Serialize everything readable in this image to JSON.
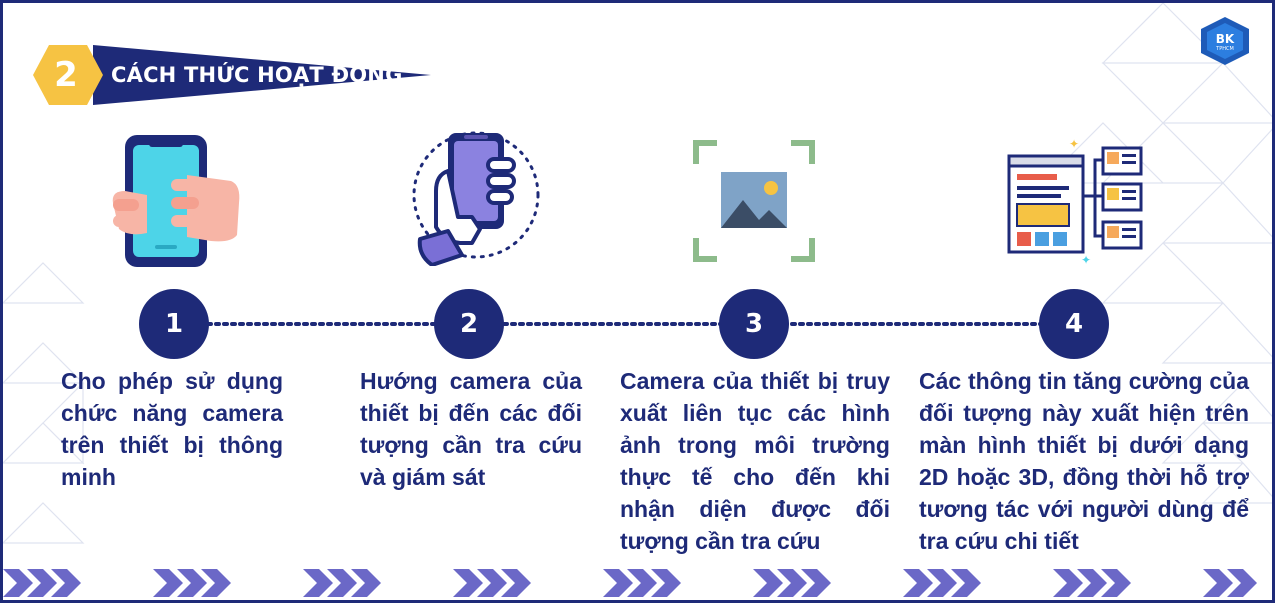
{
  "header": {
    "number": "2",
    "title": "CÁCH THỨC HOẠT ĐỘNG"
  },
  "logo": {
    "text": "BK",
    "subtext": "TPHCM"
  },
  "colors": {
    "navy": "#1e2a78",
    "yellow": "#f6c343",
    "cyan": "#4dd4e8",
    "green": "#8dbb8b",
    "purple": "#7a6fd6",
    "chevron": "#6b68c7"
  },
  "steps": [
    {
      "number": "1",
      "icon": "smartphone-hand-icon",
      "text": "Cho phép sử dụng chức năng camera trên thiết bị thông minh"
    },
    {
      "number": "2",
      "icon": "hand-holding-phone-icon",
      "text": "Hướng camera của thiết bị đến các đối tượng cần tra cứu và giám sát"
    },
    {
      "number": "3",
      "icon": "image-scan-icon",
      "text": "Camera của thiết bị truy xuất liên tục các hình ảnh trong môi trường thực tế cho đến khi nhận diện được đối tượng cần tra cứu"
    },
    {
      "number": "4",
      "icon": "ui-layout-icon",
      "text": "Các thông tin tăng cường của đối tượng này xuất hiện trên màn hình thiết bị dưới dạng 2D hoặc 3D, đồng thời hỗ trợ tương tác với người dùng để tra cứu chi tiết"
    }
  ]
}
